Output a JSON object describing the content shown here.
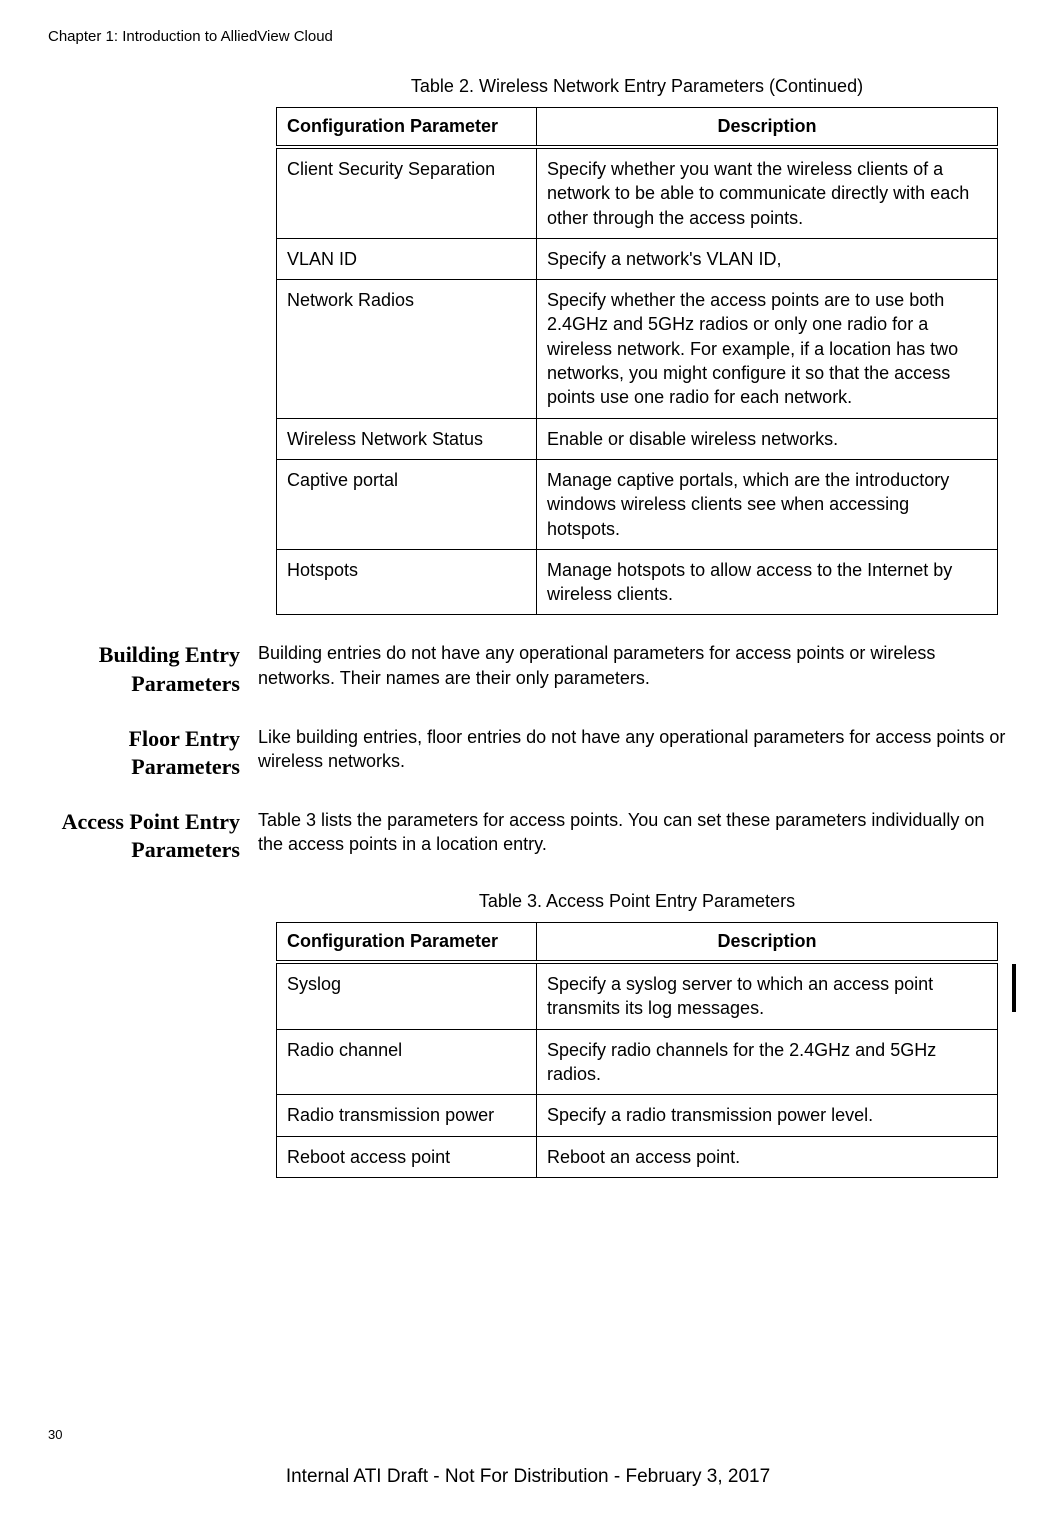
{
  "header": {
    "chapter_line": "Chapter 1: Introduction to AlliedView Cloud"
  },
  "table2": {
    "caption": "Table 2. Wireless Network Entry Parameters (Continued)",
    "col1_header": "Configuration Parameter",
    "col2_header": "Description",
    "rows": [
      {
        "param": "Client Security Separation",
        "desc": "Specify whether you want the wireless clients of a network to be able to communicate directly with each other through the access points."
      },
      {
        "param": "VLAN ID",
        "desc": "Specify a network's VLAN ID,"
      },
      {
        "param": "Network Radios",
        "desc": "Specify whether the access points are to use both 2.4GHz and 5GHz radios or only one radio for a wireless network. For example, if a location has two networks, you might configure it so that the access points use one radio for each network."
      },
      {
        "param": "Wireless Network Status",
        "desc": "Enable or disable wireless networks."
      },
      {
        "param": "Captive portal",
        "desc": "Manage captive portals, which are the introductory windows wireless clients see when accessing hotspots."
      },
      {
        "param": "Hotspots",
        "desc": "Manage hotspots to allow access to the Internet by wireless clients."
      }
    ]
  },
  "sections": {
    "building": {
      "heading": "Building Entry Parameters",
      "body": "Building entries do not have any operational parameters for access points or wireless networks. Their names are their only parameters."
    },
    "floor": {
      "heading": "Floor Entry Parameters",
      "body": "Like building entries, floor entries do not have any operational parameters for access points or wireless networks."
    },
    "access_point": {
      "heading": "Access Point Entry Parameters",
      "body": "Table 3 lists the parameters for access points. You can set these parameters individually on the access points in a location entry."
    }
  },
  "table3": {
    "caption": "Table 3. Access Point Entry Parameters",
    "col1_header": "Configuration Parameter",
    "col2_header": "Description",
    "rows": [
      {
        "param": "Syslog",
        "desc": "Specify a syslog server to which an access point transmits its log messages."
      },
      {
        "param": "Radio channel",
        "desc": "Specify radio channels for the 2.4GHz and 5GHz radios."
      },
      {
        "param": "Radio transmission power",
        "desc": "Specify a radio transmission power level."
      },
      {
        "param": "Reboot access point",
        "desc": "Reboot an access point."
      }
    ]
  },
  "page_number": "30",
  "footer_text": "Internal ATI Draft - Not For Distribution - February 3, 2017"
}
